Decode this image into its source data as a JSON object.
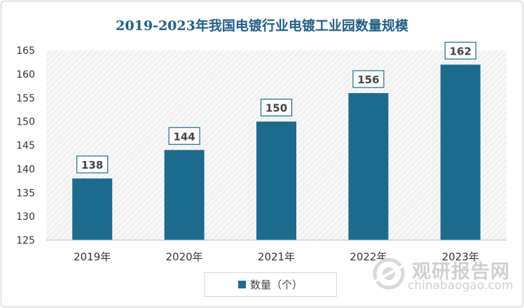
{
  "chart_data": {
    "type": "bar",
    "title": "2019-2023年我国电镀行业电镀工业园数量规模",
    "categories": [
      "2019年",
      "2020年",
      "2021年",
      "2022年",
      "2023年"
    ],
    "series": [
      {
        "name": "数量（个）",
        "values": [
          138,
          144,
          150,
          156,
          162
        ]
      }
    ],
    "ylim": [
      125,
      165
    ],
    "yticks": [
      125,
      130,
      135,
      140,
      145,
      150,
      155,
      160,
      165
    ],
    "bar_color": "#1b6b8f",
    "grid": false,
    "legend_position": "bottom"
  },
  "watermark": {
    "line1": "观研报告网",
    "line2": "chinabaogao.com"
  }
}
